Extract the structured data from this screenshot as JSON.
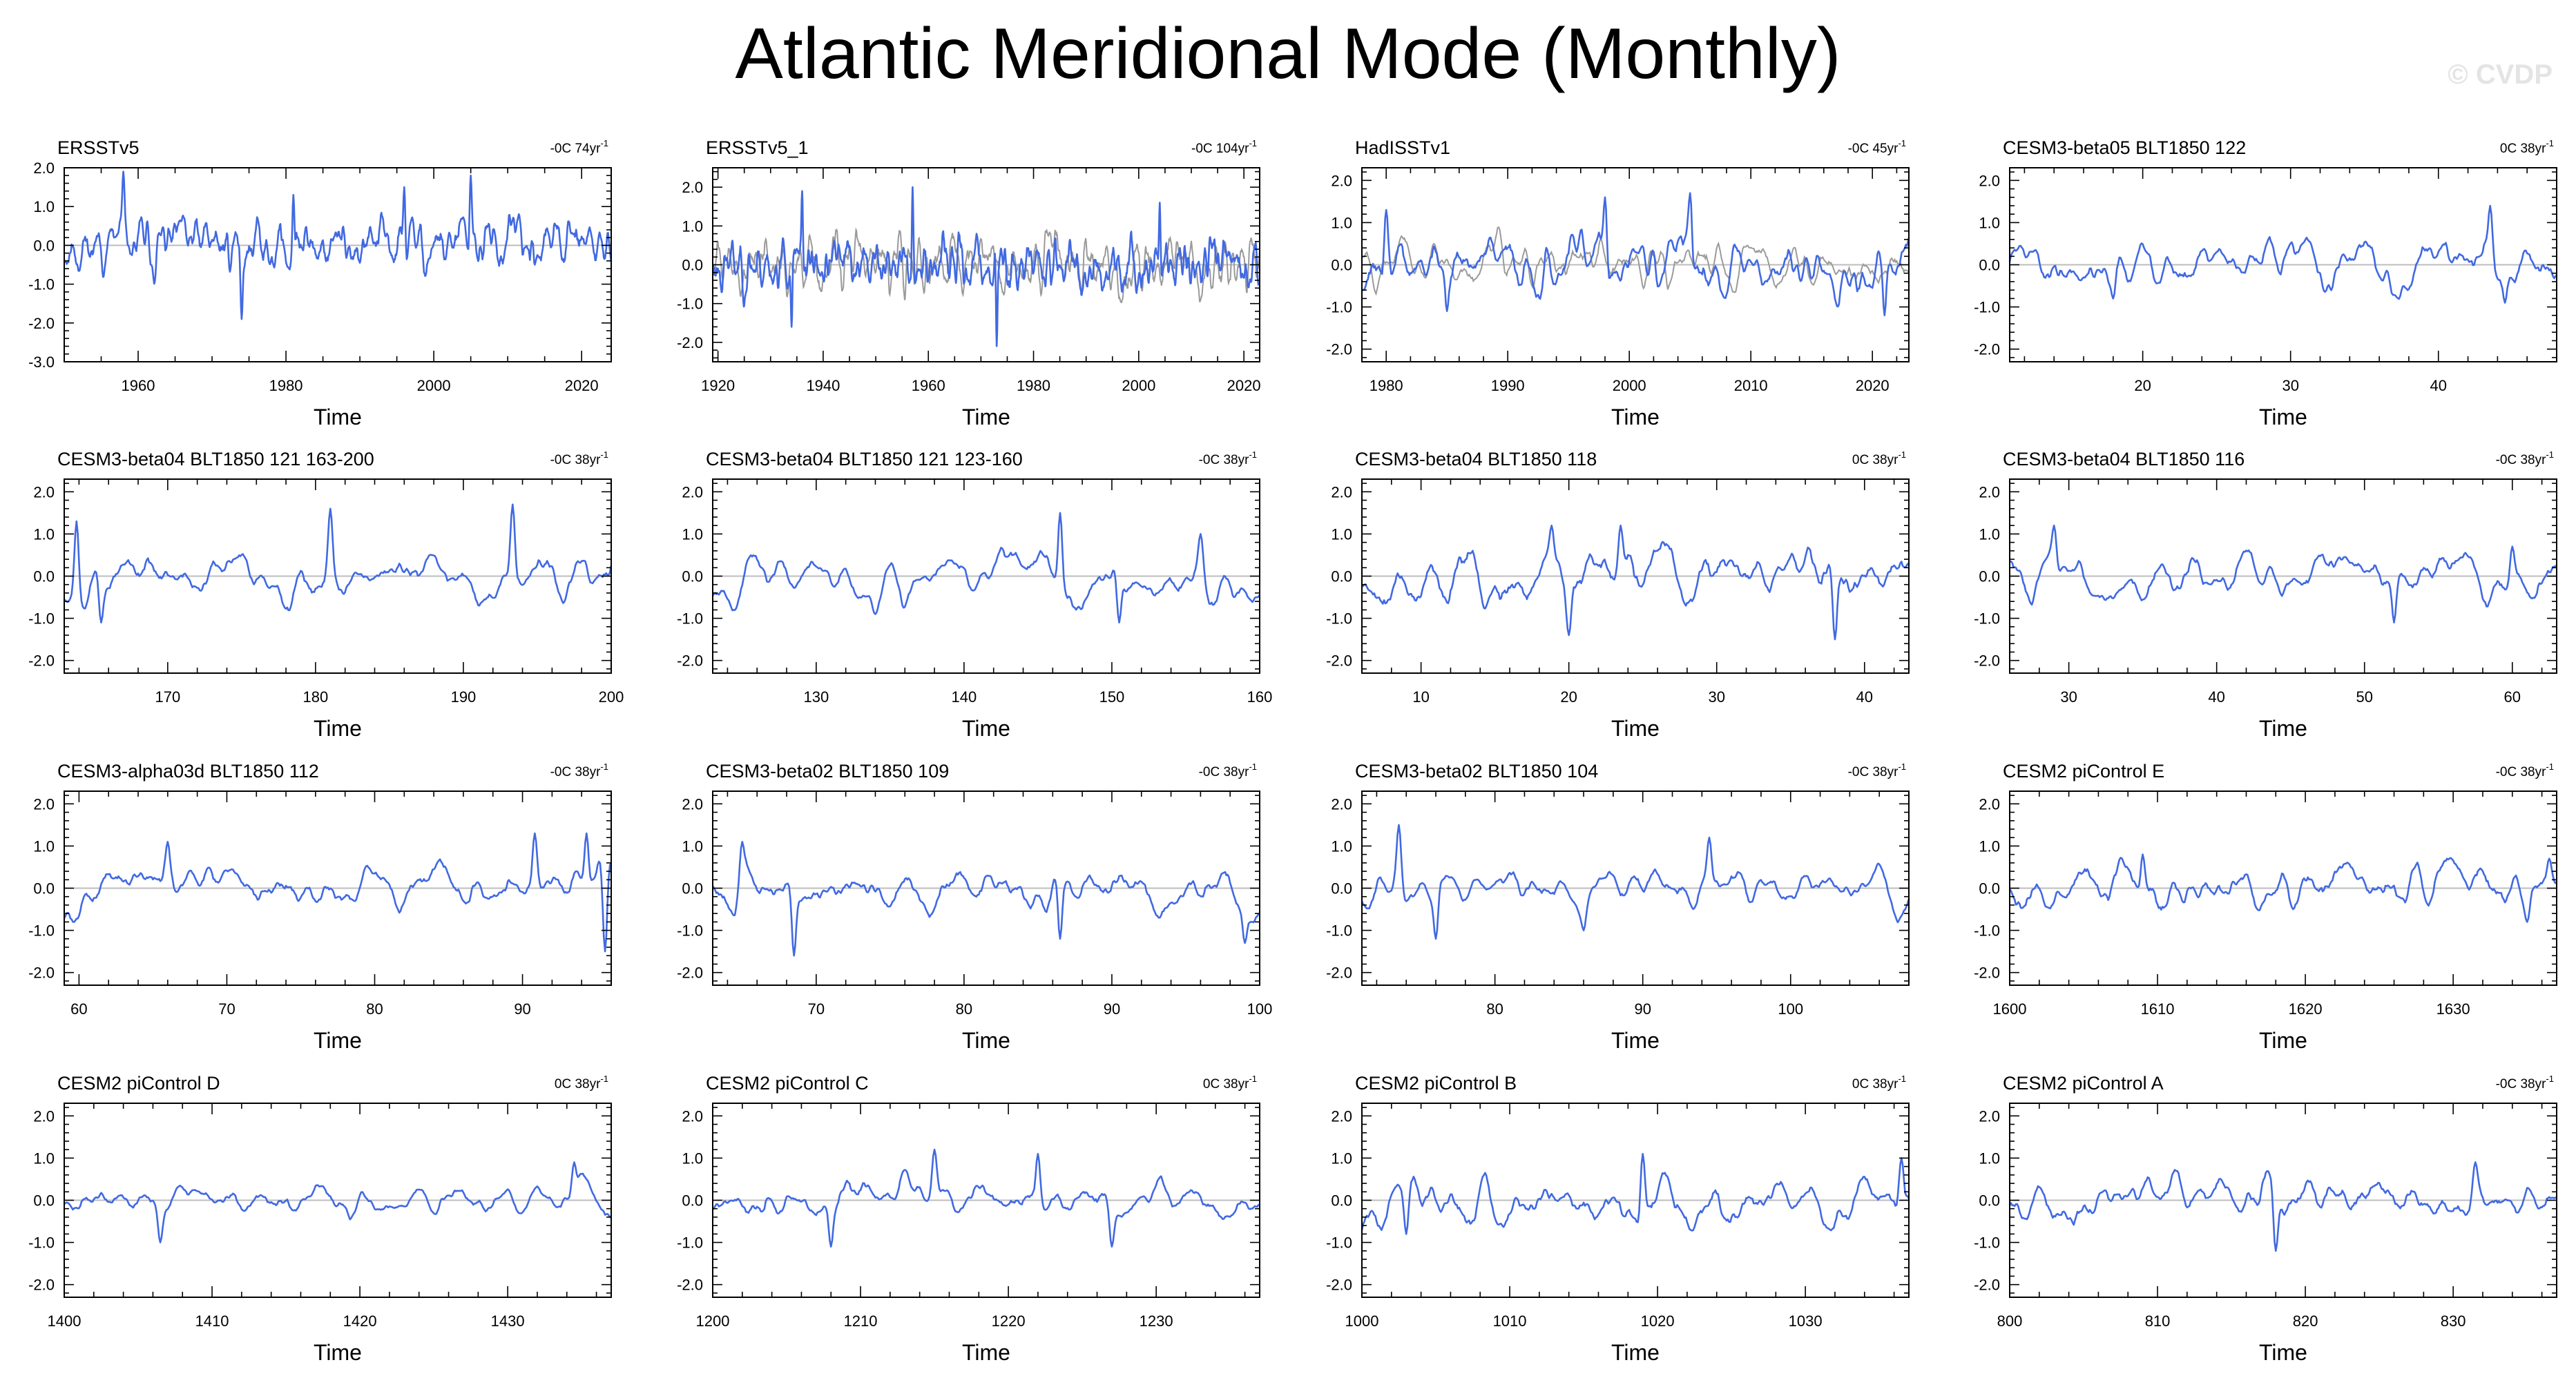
{
  "title": "Atlantic Meridional Mode (Monthly)",
  "watermark": "© CVDP",
  "colors": {
    "series": "#4169e1",
    "obs_overlay": "#9a9a9a",
    "zero_line": "#bdbdbd",
    "frame": "#000000"
  },
  "chart_data": [
    {
      "type": "line",
      "title": "ERSSTv5",
      "trend": "-0C 74yr",
      "trend_sup": "-1",
      "xlabel": "Time",
      "xlim": [
        1950,
        2024
      ],
      "ylim": [
        -3,
        2
      ],
      "yticks": [
        -3,
        -2,
        -1,
        0,
        1,
        2
      ],
      "xticks": [
        1960,
        1980,
        2000,
        2020
      ],
      "amp": 0.55,
      "seed": 11,
      "smooth": 2,
      "overlay": false,
      "series": [
        {
          "values_summary": "monthly AMM index",
          "peaks": [
            [
              1958,
              1.9
            ],
            [
              1974,
              -1.9
            ],
            [
              2005,
              1.8
            ],
            [
              1981,
              1.3
            ],
            [
              1996,
              1.5
            ]
          ]
        }
      ]
    },
    {
      "type": "line",
      "title": "ERSSTv5_1",
      "trend": "-0C 104yr",
      "trend_sup": "-1",
      "xlabel": "Time",
      "xlim": [
        1919,
        2023
      ],
      "ylim": [
        -2.5,
        2.5
      ],
      "yticks": [
        -2,
        -1,
        0,
        1,
        2
      ],
      "xticks": [
        1920,
        1940,
        1960,
        1980,
        2000,
        2020
      ],
      "amp": 0.6,
      "seed": 23,
      "smooth": 2,
      "overlay": true,
      "series": [
        {
          "values_summary": "monthly AMM index",
          "peaks": [
            [
              1936,
              1.9
            ],
            [
              1957,
              2.0
            ],
            [
              1973,
              -2.1
            ],
            [
              1934,
              -1.6
            ],
            [
              2004,
              1.6
            ]
          ]
        }
      ]
    },
    {
      "type": "line",
      "title": "HadISSTv1",
      "trend": "-0C 45yr",
      "trend_sup": "-1",
      "xlabel": "Time",
      "xlim": [
        1978,
        2023
      ],
      "ylim": [
        -2.3,
        2.3
      ],
      "yticks": [
        -2,
        -1,
        0,
        1,
        2
      ],
      "xticks": [
        1980,
        1990,
        2000,
        2010,
        2020
      ],
      "amp": 0.55,
      "seed": 37,
      "smooth": 2,
      "overlay": true,
      "series": [
        {
          "values_summary": "monthly AMM index",
          "peaks": [
            [
              1980,
              1.3
            ],
            [
              1985,
              -1.1
            ],
            [
              1998,
              1.6
            ],
            [
              2005,
              1.7
            ],
            [
              2021,
              -1.2
            ]
          ]
        }
      ]
    },
    {
      "type": "line",
      "title": "CESM3-beta05 BLT1850 122",
      "trend": "0C 38yr",
      "trend_sup": "-1",
      "xlabel": "Time",
      "xlim": [
        11,
        48
      ],
      "ylim": [
        -2.3,
        2.3
      ],
      "yticks": [
        -2,
        -1,
        0,
        1,
        2
      ],
      "xticks": [
        20,
        30,
        40
      ],
      "amp": 0.45,
      "seed": 41,
      "smooth": 4,
      "overlay": false,
      "series": [
        {
          "values_summary": "monthly AMM index",
          "peaks": [
            [
              43.5,
              1.4
            ],
            [
              18,
              -0.8
            ],
            [
              44.5,
              -0.9
            ]
          ]
        }
      ]
    },
    {
      "type": "line",
      "title": "CESM3-beta04 BLT1850 121 163-200",
      "trend": "-0C 38yr",
      "trend_sup": "-1",
      "xlabel": "Time",
      "xlim": [
        163,
        200
      ],
      "ylim": [
        -2.3,
        2.3
      ],
      "yticks": [
        -2,
        -1,
        0,
        1,
        2
      ],
      "xticks": [
        170,
        180,
        190,
        200
      ],
      "amp": 0.45,
      "seed": 53,
      "smooth": 4,
      "overlay": false,
      "series": [
        {
          "values_summary": "monthly AMM index",
          "peaks": [
            [
              163.8,
              1.3
            ],
            [
              181,
              1.6
            ],
            [
              193.3,
              1.7
            ],
            [
              165.5,
              -1.1
            ]
          ]
        }
      ]
    },
    {
      "type": "line",
      "title": "CESM3-beta04 BLT1850 121 123-160",
      "trend": "-0C 38yr",
      "trend_sup": "-1",
      "xlabel": "Time",
      "xlim": [
        123,
        160
      ],
      "ylim": [
        -2.3,
        2.3
      ],
      "yticks": [
        -2,
        -1,
        0,
        1,
        2
      ],
      "xticks": [
        130,
        140,
        150,
        160
      ],
      "amp": 0.45,
      "seed": 67,
      "smooth": 4,
      "overlay": false,
      "series": [
        {
          "values_summary": "monthly AMM index",
          "peaks": [
            [
              146.5,
              1.5
            ],
            [
              156,
              1.0
            ],
            [
              150.5,
              -1.1
            ],
            [
              134,
              -0.9
            ]
          ]
        }
      ]
    },
    {
      "type": "line",
      "title": "CESM3-beta04 BLT1850 118",
      "trend": "0C 38yr",
      "trend_sup": "-1",
      "xlabel": "Time",
      "xlim": [
        6,
        43
      ],
      "ylim": [
        -2.3,
        2.3
      ],
      "yticks": [
        -2,
        -1,
        0,
        1,
        2
      ],
      "xticks": [
        10,
        20,
        30,
        40
      ],
      "amp": 0.45,
      "seed": 79,
      "smooth": 4,
      "overlay": false,
      "series": [
        {
          "values_summary": "monthly AMM index",
          "peaks": [
            [
              18.8,
              1.2
            ],
            [
              23.5,
              1.2
            ],
            [
              38,
              -1.5
            ],
            [
              20,
              -1.4
            ]
          ]
        }
      ]
    },
    {
      "type": "line",
      "title": "CESM3-beta04 BLT1850 116",
      "trend": "-0C 38yr",
      "trend_sup": "-1",
      "xlabel": "Time",
      "xlim": [
        26,
        63
      ],
      "ylim": [
        -2.3,
        2.3
      ],
      "yticks": [
        -2,
        -1,
        0,
        1,
        2
      ],
      "xticks": [
        30,
        40,
        50,
        60
      ],
      "amp": 0.4,
      "seed": 83,
      "smooth": 4,
      "overlay": false,
      "series": [
        {
          "values_summary": "monthly AMM index",
          "peaks": [
            [
              29,
              1.2
            ],
            [
              60,
              0.7
            ],
            [
              52,
              -1.1
            ]
          ]
        }
      ]
    },
    {
      "type": "line",
      "title": "CESM3-alpha03d BLT1850 112",
      "trend": "-0C 38yr",
      "trend_sup": "-1",
      "xlabel": "Time",
      "xlim": [
        59,
        96
      ],
      "ylim": [
        -2.3,
        2.3
      ],
      "yticks": [
        -2,
        -1,
        0,
        1,
        2
      ],
      "xticks": [
        60,
        70,
        80,
        90
      ],
      "amp": 0.45,
      "seed": 97,
      "smooth": 4,
      "overlay": false,
      "series": [
        {
          "values_summary": "monthly AMM index",
          "peaks": [
            [
              90.8,
              1.3
            ],
            [
              94.3,
              1.3
            ],
            [
              95.6,
              -1.5
            ],
            [
              66,
              1.1
            ]
          ]
        }
      ]
    },
    {
      "type": "line",
      "title": "CESM3-beta02 BLT1850 109",
      "trend": "-0C 38yr",
      "trend_sup": "-1",
      "xlabel": "Time",
      "xlim": [
        63,
        100
      ],
      "ylim": [
        -2.3,
        2.3
      ],
      "yticks": [
        -2,
        -1,
        0,
        1,
        2
      ],
      "xticks": [
        70,
        80,
        90,
        100
      ],
      "amp": 0.45,
      "seed": 101,
      "smooth": 4,
      "overlay": false,
      "series": [
        {
          "values_summary": "monthly AMM index",
          "peaks": [
            [
              65,
              1.1
            ],
            [
              68.5,
              -1.6
            ],
            [
              99,
              -1.3
            ],
            [
              86.5,
              -1.2
            ]
          ]
        }
      ]
    },
    {
      "type": "line",
      "title": "CESM3-beta02 BLT1850 104",
      "trend": "-0C 38yr",
      "trend_sup": "-1",
      "xlabel": "Time",
      "xlim": [
        71,
        108
      ],
      "ylim": [
        -2.3,
        2.3
      ],
      "yticks": [
        -2,
        -1,
        0,
        1,
        2
      ],
      "xticks": [
        80,
        90,
        100
      ],
      "amp": 0.45,
      "seed": 113,
      "smooth": 4,
      "overlay": false,
      "series": [
        {
          "values_summary": "monthly AMM index",
          "peaks": [
            [
              73.5,
              1.5
            ],
            [
              94.5,
              1.2
            ],
            [
              76,
              -1.2
            ],
            [
              86,
              -1.0
            ]
          ]
        }
      ]
    },
    {
      "type": "line",
      "title": "CESM2 piControl E",
      "trend": "-0C 38yr",
      "trend_sup": "-1",
      "xlabel": "Time",
      "xlim": [
        1600,
        1637
      ],
      "ylim": [
        -2.3,
        2.3
      ],
      "yticks": [
        -2,
        -1,
        0,
        1,
        2
      ],
      "xticks": [
        1600,
        1610,
        1620,
        1630
      ],
      "amp": 0.4,
      "seed": 127,
      "smooth": 4,
      "overlay": false,
      "series": [
        {
          "values_summary": "monthly AMM index",
          "peaks": [
            [
              1636.5,
              0.7
            ],
            [
              1609,
              0.8
            ],
            [
              1635,
              -0.8
            ]
          ]
        }
      ]
    },
    {
      "type": "line",
      "title": "CESM2 piControl D",
      "trend": "0C 38yr",
      "trend_sup": "-1",
      "xlabel": "Time",
      "xlim": [
        1400,
        1437
      ],
      "ylim": [
        -2.3,
        2.3
      ],
      "yticks": [
        -2,
        -1,
        0,
        1,
        2
      ],
      "xticks": [
        1400,
        1410,
        1420,
        1430
      ],
      "amp": 0.35,
      "seed": 131,
      "smooth": 4,
      "overlay": false,
      "series": [
        {
          "values_summary": "monthly AMM index",
          "peaks": [
            [
              1434.5,
              0.9
            ],
            [
              1406.5,
              -1.0
            ]
          ]
        }
      ]
    },
    {
      "type": "line",
      "title": "CESM2 piControl C",
      "trend": "0C 38yr",
      "trend_sup": "-1",
      "xlabel": "Time",
      "xlim": [
        1200,
        1237
      ],
      "ylim": [
        -2.3,
        2.3
      ],
      "yticks": [
        -2,
        -1,
        0,
        1,
        2
      ],
      "xticks": [
        1200,
        1210,
        1220,
        1230
      ],
      "amp": 0.4,
      "seed": 149,
      "smooth": 4,
      "overlay": false,
      "series": [
        {
          "values_summary": "monthly AMM index",
          "peaks": [
            [
              1215,
              1.2
            ],
            [
              1222,
              1.1
            ],
            [
              1227,
              -1.1
            ],
            [
              1208,
              -1.1
            ]
          ]
        }
      ]
    },
    {
      "type": "line",
      "title": "CESM2 piControl B",
      "trend": "0C 38yr",
      "trend_sup": "-1",
      "xlabel": "Time",
      "xlim": [
        1000,
        1037
      ],
      "ylim": [
        -2.3,
        2.3
      ],
      "yticks": [
        -2,
        -1,
        0,
        1,
        2
      ],
      "xticks": [
        1000,
        1010,
        1020,
        1030
      ],
      "amp": 0.4,
      "seed": 157,
      "smooth": 4,
      "overlay": false,
      "series": [
        {
          "values_summary": "monthly AMM index",
          "peaks": [
            [
              1019,
              1.1
            ],
            [
              1036.5,
              1.0
            ],
            [
              1003,
              -0.8
            ]
          ]
        }
      ]
    },
    {
      "type": "line",
      "title": "CESM2 piControl A",
      "trend": "-0C 38yr",
      "trend_sup": "-1",
      "xlabel": "Time",
      "xlim": [
        800,
        837
      ],
      "ylim": [
        -2.3,
        2.3
      ],
      "yticks": [
        -2,
        -1,
        0,
        1,
        2
      ],
      "xticks": [
        800,
        810,
        820,
        830
      ],
      "amp": 0.4,
      "seed": 163,
      "smooth": 4,
      "overlay": false,
      "series": [
        {
          "values_summary": "monthly AMM index",
          "peaks": [
            [
              831.5,
              0.9
            ],
            [
              818,
              -1.2
            ]
          ]
        }
      ]
    }
  ]
}
